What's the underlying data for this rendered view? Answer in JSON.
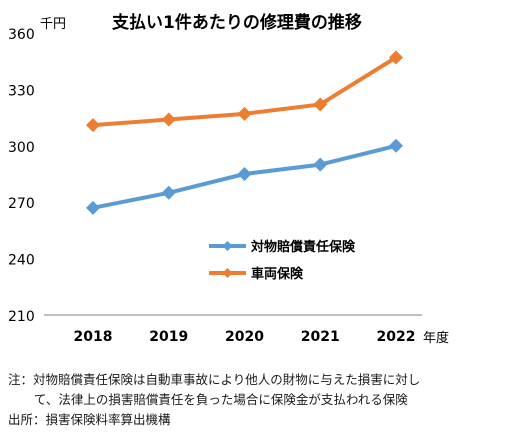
{
  "chart_data": {
    "type": "line",
    "title": "支払い1件あたりの修理費の推移",
    "unit_label": "千円",
    "xlabel": "年度",
    "ylabel": "",
    "categories": [
      "2018",
      "2019",
      "2020",
      "2021",
      "2022"
    ],
    "y_ticks": [
      "360",
      "330",
      "300",
      "270",
      "240",
      "210"
    ],
    "ylim": [
      210,
      360
    ],
    "grid": false,
    "legend_position": "center-right",
    "series": [
      {
        "name": "対物賠償責任保険",
        "color": "#5b9bd5",
        "values": [
          267,
          275,
          285,
          290,
          300
        ]
      },
      {
        "name": "車両保険",
        "color": "#ed7d31",
        "values": [
          311,
          314,
          317,
          322,
          347
        ]
      }
    ]
  },
  "notes": {
    "line1": "注：対物賠償責任保険は自動車事故により他人の財物に与えた損害に対し",
    "line2": "て、法律上の損害賠償責任を負った場合に保険金が支払われる保険",
    "source": "出所：損害保険料率算出機構"
  }
}
